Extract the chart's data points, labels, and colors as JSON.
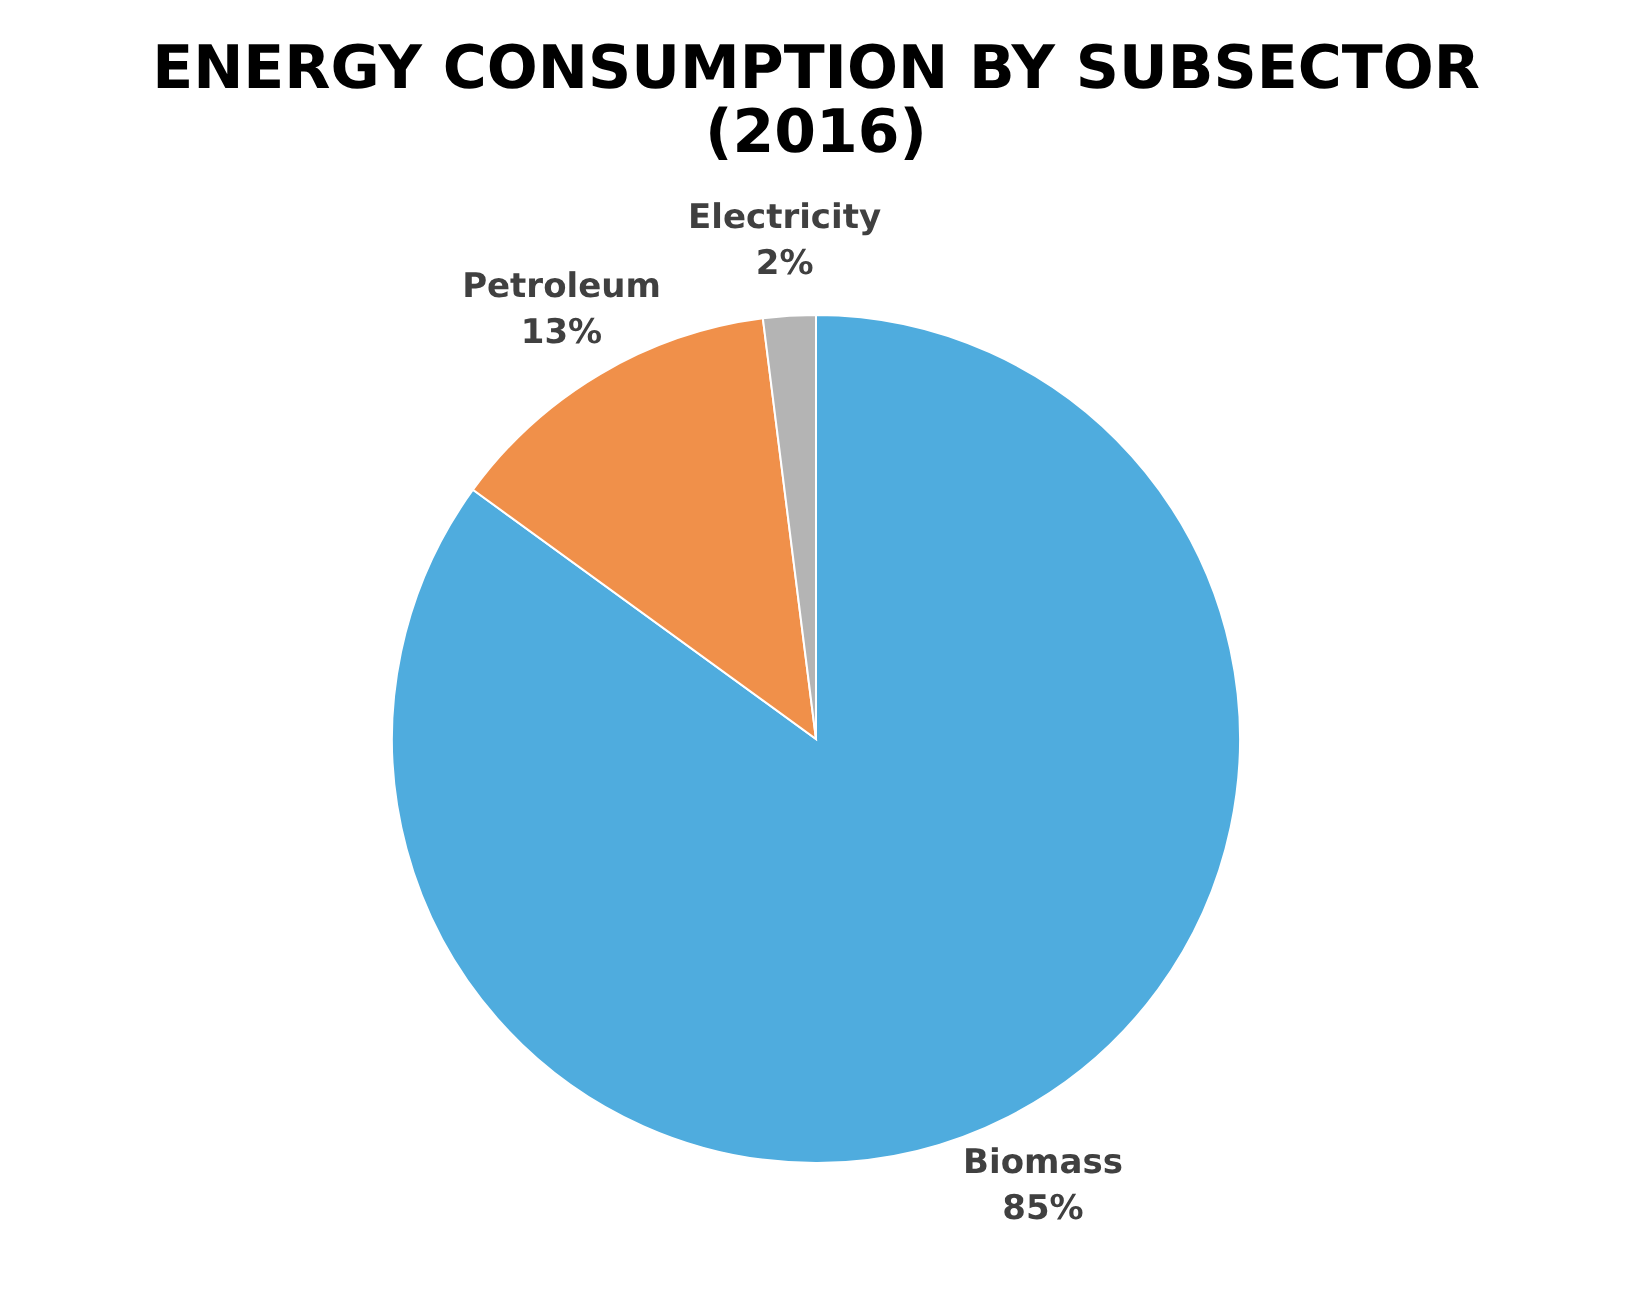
{
  "chart_data": {
    "type": "pie",
    "title": "ENERGY CONSUMPTION BY SUBSECTOR (2016)",
    "categories": [
      "Biomass",
      "Petroleum",
      "Electricity"
    ],
    "values": [
      85,
      13,
      2
    ],
    "colors": [
      "#4facde",
      "#f0904a",
      "#b4b4b4"
    ],
    "value_labels": [
      "85%",
      "13%",
      "2%"
    ],
    "legend": false
  }
}
